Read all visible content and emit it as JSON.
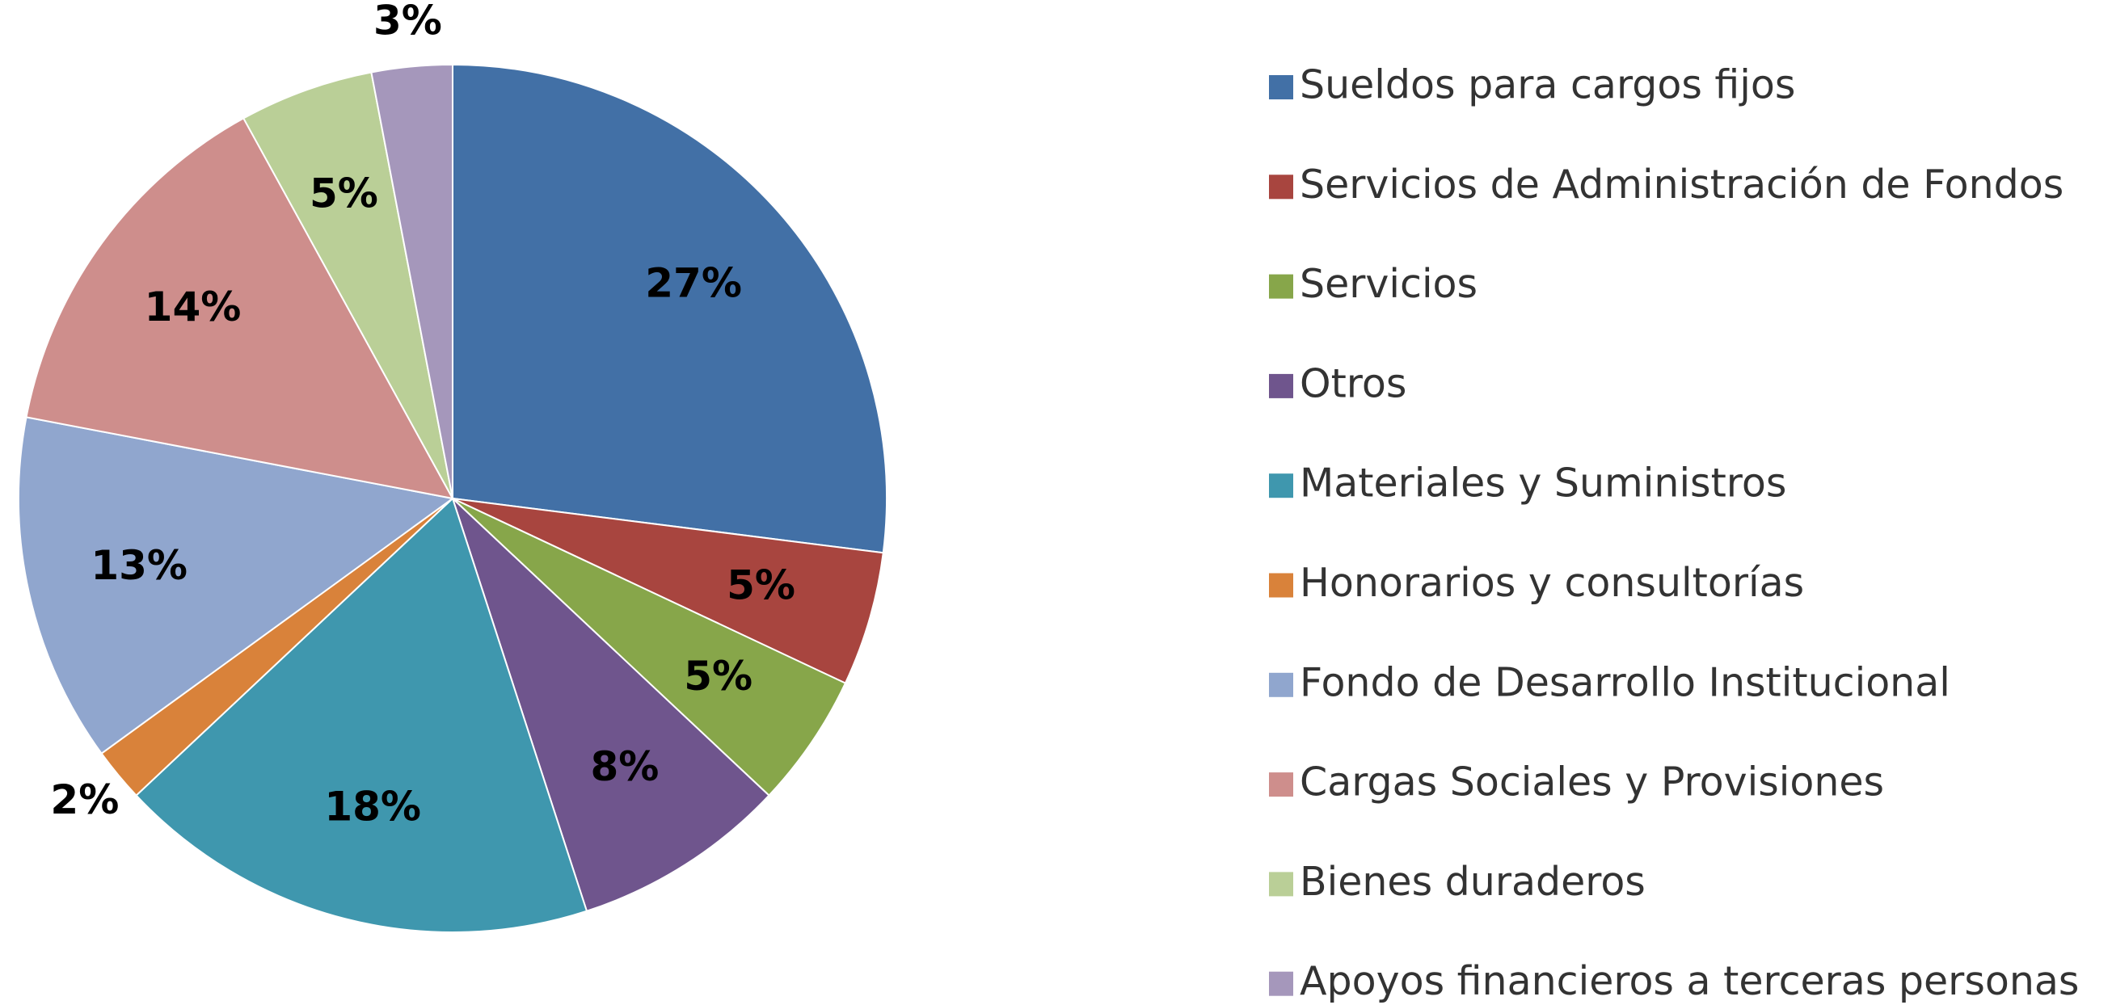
{
  "chart_data": {
    "type": "pie",
    "categories": [
      "Sueldos para cargos fijos",
      "Servicios de Administración de Fondos",
      "Servicios",
      "Otros",
      "Materiales y Suministros",
      "Honorarios y consultorías",
      "Fondo de Desarrollo Institucional",
      "Cargas Sociales y Provisiones",
      "Bienes duraderos",
      "Apoyos financieros a terceras personas"
    ],
    "values": [
      27,
      5,
      5,
      8,
      18,
      2,
      13,
      14,
      5,
      3
    ],
    "value_labels": [
      "27%",
      "5%",
      "5%",
      "8%",
      "18%",
      "2%",
      "13%",
      "14%",
      "5%",
      "3%"
    ],
    "colors": [
      "#4270a6",
      "#a8453f",
      "#87a64a",
      "#6f558d",
      "#3f97ae",
      "#d9823a",
      "#90a6ce",
      "#ce8e8c",
      "#bacf97",
      "#a597bb"
    ],
    "legend": "right"
  }
}
